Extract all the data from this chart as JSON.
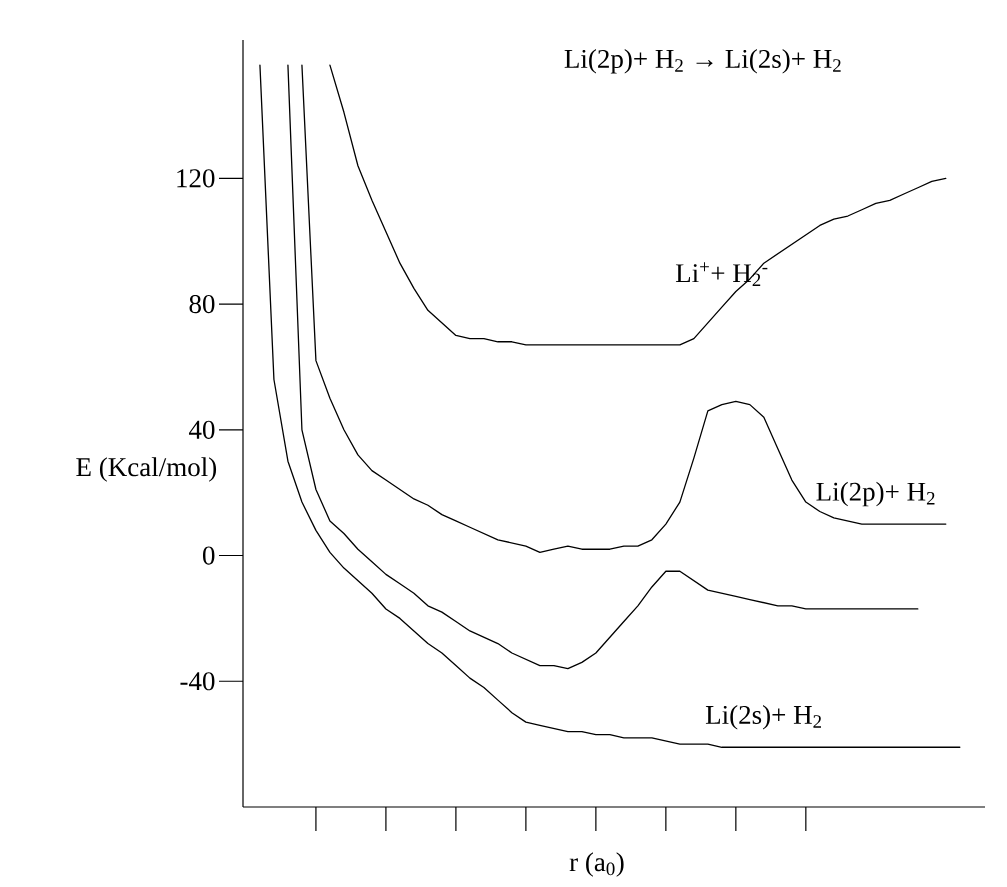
{
  "chart_data": {
    "type": "line",
    "title": "Li(2p)+ H$_{2}$ → Li(2s)+ H$_{2}$",
    "xlabel": "r (a$_{0}$)",
    "ylabel": "E (Kcal/mol)",
    "categories": [
      null,
      null,
      null,
      null,
      null,
      null,
      null,
      null,
      null,
      null,
      null,
      null,
      null,
      null,
      null,
      null,
      null,
      null,
      null,
      null,
      null,
      null,
      null,
      null,
      null,
      null,
      null,
      null,
      null,
      null,
      null,
      null,
      null,
      null,
      null,
      null,
      null,
      null,
      null,
      null,
      null,
      null,
      null,
      null,
      null,
      null,
      null,
      null,
      null,
      null,
      null,
      null
    ],
    "series": [
      {
        "name": "Li$^{+}$+ H$_{2}$$^{-}$",
        "color": "#000000",
        "values": [
          null,
          null,
          null,
          null,
          null,
          null,
          156,
          141,
          124,
          113,
          103,
          93,
          85,
          78,
          74,
          70,
          69,
          69,
          68,
          68,
          67,
          67,
          67,
          67,
          67,
          67,
          67,
          67,
          67,
          67,
          67,
          67,
          69,
          74,
          79,
          84,
          88,
          93,
          96,
          99,
          102,
          105,
          107,
          108,
          110,
          112,
          113,
          115,
          117,
          119,
          120,
          null
        ]
      },
      {
        "name": "Li(2p)+ H$_{2}$",
        "color": "#000000",
        "values": [
          null,
          null,
          null,
          null,
          156,
          62,
          50,
          40,
          32,
          27,
          24,
          21,
          18,
          16,
          13,
          11,
          9,
          7,
          5,
          4,
          3,
          1,
          2,
          3,
          2,
          2,
          2,
          3,
          3,
          5,
          10,
          17,
          31,
          46,
          48,
          49,
          48,
          44,
          34,
          24,
          17,
          14,
          12,
          11,
          10,
          10,
          10,
          10,
          10,
          10,
          10,
          null
        ]
      },
      {
        "color": "#000000",
        "values": [
          null,
          null,
          null,
          156,
          40,
          21,
          11,
          7,
          2,
          -2,
          -6,
          -9,
          -12,
          -16,
          -18,
          -21,
          -24,
          -26,
          -28,
          -31,
          -33,
          -35,
          -35,
          -36,
          -34,
          -31,
          -26,
          -21,
          -16,
          -10,
          -5,
          -5,
          -8,
          -11,
          -12,
          -13,
          -14,
          -15,
          -16,
          -16,
          -17,
          -17,
          -17,
          -17,
          -17,
          -17,
          -17,
          -17,
          -17,
          null,
          null,
          null
        ]
      },
      {
        "name": "Li(2s)+ H$_{2}$",
        "color": "#000000",
        "values": [
          null,
          156,
          56,
          30,
          17,
          8,
          1,
          -4,
          -8,
          -12,
          -17,
          -20,
          -24,
          -28,
          -31,
          -35,
          -39,
          -42,
          -46,
          -50,
          -53,
          -54,
          -55,
          -56,
          -56,
          -57,
          -57,
          -58,
          -58,
          -58,
          -59,
          -60,
          -60,
          -60,
          -61,
          -61,
          -61,
          -61,
          -61,
          -61,
          -61,
          -61,
          -61,
          -61,
          -61,
          -61,
          -61,
          -61,
          -61,
          -61,
          -61,
          -61
        ]
      }
    ],
    "ylim": [
      -80,
      164
    ],
    "yticks": [
      -40,
      0,
      40,
      80,
      120
    ],
    "marker": "none",
    "line_style": "solid"
  }
}
